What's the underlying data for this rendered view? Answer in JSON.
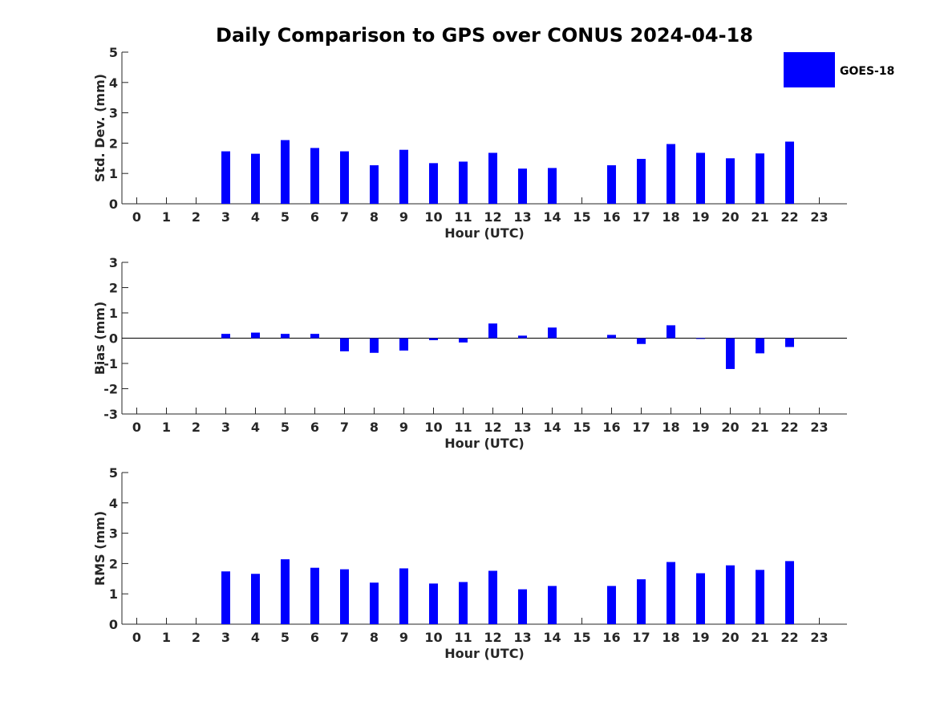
{
  "chart_data": {
    "type": "bar",
    "title": "Daily Comparison to GPS over CONUS 2024-04-18",
    "legend": {
      "entries": [
        {
          "name": "GOES-18",
          "color": "#0000ff"
        }
      ],
      "placement": "top-right"
    },
    "categories": [
      "0",
      "1",
      "2",
      "3",
      "4",
      "5",
      "6",
      "7",
      "8",
      "9",
      "10",
      "11",
      "12",
      "13",
      "14",
      "15",
      "16",
      "17",
      "18",
      "19",
      "20",
      "21",
      "22",
      "23"
    ],
    "panels": [
      {
        "id": "stddev",
        "ylabel": "Std. Dev. (mm)",
        "xlabel": "Hour (UTC)",
        "ylim": [
          0,
          5
        ],
        "yticks": [
          "0",
          "1",
          "2",
          "3",
          "4",
          "5"
        ],
        "series": [
          {
            "name": "GOES-18",
            "color": "#0000ff",
            "values": [
              null,
              null,
              null,
              1.73,
              1.65,
              2.1,
              1.84,
              1.73,
              1.27,
              1.78,
              1.34,
              1.39,
              1.68,
              1.16,
              1.18,
              null,
              1.27,
              1.48,
              1.97,
              1.68,
              1.5,
              1.66,
              2.05,
              null
            ]
          }
        ]
      },
      {
        "id": "bias",
        "ylabel": "Bias (mm)",
        "xlabel": "Hour (UTC)",
        "ylim": [
          -3,
          3
        ],
        "yticks": [
          "-3",
          "-2",
          "-1",
          "0",
          "1",
          "2",
          "3"
        ],
        "zero_line": true,
        "series": [
          {
            "name": "GOES-18",
            "color": "#0000ff",
            "values": [
              null,
              null,
              null,
              0.17,
              0.22,
              0.17,
              0.17,
              -0.52,
              -0.58,
              -0.49,
              -0.08,
              -0.17,
              0.58,
              0.1,
              0.42,
              null,
              0.13,
              -0.23,
              0.51,
              -0.03,
              -1.22,
              -0.6,
              -0.35,
              null
            ]
          }
        ]
      },
      {
        "id": "rms",
        "ylabel": "RMS (mm)",
        "xlabel": "Hour (UTC)",
        "ylim": [
          0,
          5
        ],
        "yticks": [
          "0",
          "1",
          "2",
          "3",
          "4",
          "5"
        ],
        "series": [
          {
            "name": "GOES-18",
            "color": "#0000ff",
            "values": [
              null,
              null,
              null,
              1.74,
              1.66,
              2.14,
              1.86,
              1.81,
              1.37,
              1.84,
              1.34,
              1.39,
              1.76,
              1.15,
              1.26,
              null,
              1.26,
              1.48,
              2.05,
              1.68,
              1.94,
              1.79,
              2.08,
              null
            ]
          }
        ]
      }
    ]
  }
}
